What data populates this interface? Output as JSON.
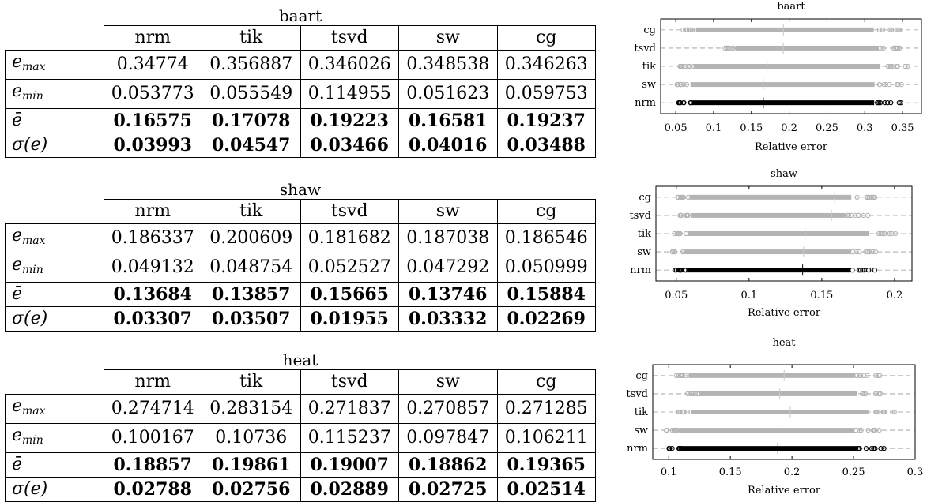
{
  "columns": [
    "nrm",
    "tik",
    "tsvd",
    "sw",
    "cg"
  ],
  "row_labels": {
    "emax": {
      "base": "e",
      "sub": "max"
    },
    "emin": {
      "base": "e",
      "sub": "min"
    },
    "mean": "ē",
    "std": "σ(e)"
  },
  "tables": [
    {
      "title": "baart",
      "emax": [
        "0.34774",
        "0.356887",
        "0.346026",
        "0.348538",
        "0.346263"
      ],
      "emin": [
        "0.053773",
        "0.055549",
        "0.114955",
        "0.051623",
        "0.059753"
      ],
      "mean": [
        "0.16575",
        "0.17078",
        "0.19223",
        "0.16581",
        "0.19237"
      ],
      "std": [
        "0.03993",
        "0.04547",
        "0.03466",
        "0.04016",
        "0.03488"
      ]
    },
    {
      "title": "shaw",
      "emax": [
        "0.186337",
        "0.200609",
        "0.181682",
        "0.187038",
        "0.186546"
      ],
      "emin": [
        "0.049132",
        "0.048754",
        "0.052527",
        "0.047292",
        "0.050999"
      ],
      "mean": [
        "0.13684",
        "0.13857",
        "0.15665",
        "0.13746",
        "0.15884"
      ],
      "std": [
        "0.03307",
        "0.03507",
        "0.01955",
        "0.03332",
        "0.02269"
      ]
    },
    {
      "title": "heat",
      "emax": [
        "0.274714",
        "0.283154",
        "0.271837",
        "0.270857",
        "0.271285"
      ],
      "emin": [
        "0.100167",
        "0.10736",
        "0.115237",
        "0.097847",
        "0.106211"
      ],
      "mean": [
        "0.18857",
        "0.19861",
        "0.19007",
        "0.18862",
        "0.19365"
      ],
      "std": [
        "0.02788",
        "0.02756",
        "0.02889",
        "0.02725",
        "0.02514"
      ]
    }
  ],
  "chart_data": [
    {
      "type": "scatter",
      "title": "baart",
      "xlabel": "Relative error",
      "categories": [
        "nrm",
        "sw",
        "tik",
        "tsvd",
        "cg"
      ],
      "xlim": [
        0.03,
        0.375
      ],
      "xticks": [
        0.05,
        0.1,
        0.15,
        0.2,
        0.25,
        0.3,
        0.35
      ],
      "xtick_labels": [
        "0.05",
        "0.1",
        "0.15",
        "0.2",
        "0.25",
        "0.3",
        "0.35"
      ],
      "series": [
        {
          "name": "nrm",
          "min": 0.053773,
          "max": 0.34774,
          "mean": 0.16575
        },
        {
          "name": "sw",
          "min": 0.051623,
          "max": 0.348538,
          "mean": 0.16581
        },
        {
          "name": "tik",
          "min": 0.055549,
          "max": 0.356887,
          "mean": 0.17078
        },
        {
          "name": "tsvd",
          "min": 0.114955,
          "max": 0.346026,
          "mean": 0.19223
        },
        {
          "name": "cg",
          "min": 0.059753,
          "max": 0.346263,
          "mean": 0.19237
        }
      ],
      "highlight_color": "#000000",
      "other_color": "#b4b4b4"
    },
    {
      "type": "scatter",
      "title": "shaw",
      "xlabel": "Relative error",
      "categories": [
        "nrm",
        "sw",
        "tik",
        "tsvd",
        "cg"
      ],
      "xlim": [
        0.036,
        0.212
      ],
      "xticks": [
        0.05,
        0.1,
        0.15,
        0.2
      ],
      "xtick_labels": [
        "0.05",
        "0.1",
        "0.15",
        "0.2"
      ],
      "series": [
        {
          "name": "nrm",
          "min": 0.049132,
          "max": 0.186337,
          "mean": 0.13684
        },
        {
          "name": "sw",
          "min": 0.047292,
          "max": 0.187038,
          "mean": 0.13746
        },
        {
          "name": "tik",
          "min": 0.048754,
          "max": 0.200609,
          "mean": 0.13857
        },
        {
          "name": "tsvd",
          "min": 0.052527,
          "max": 0.181682,
          "mean": 0.15665
        },
        {
          "name": "cg",
          "min": 0.050999,
          "max": 0.186546,
          "mean": 0.15884
        }
      ],
      "highlight_color": "#000000",
      "other_color": "#b4b4b4"
    },
    {
      "type": "scatter",
      "title": "heat",
      "xlabel": "Relative error",
      "categories": [
        "nrm",
        "sw",
        "tik",
        "tsvd",
        "cg"
      ],
      "xlim": [
        0.087,
        0.3
      ],
      "xticks": [
        0.1,
        0.15,
        0.2,
        0.25,
        0.3
      ],
      "xtick_labels": [
        "0.1",
        "0.15",
        "0.2",
        "0.25",
        "0.3"
      ],
      "series": [
        {
          "name": "nrm",
          "min": 0.100167,
          "max": 0.274714,
          "mean": 0.18857
        },
        {
          "name": "sw",
          "min": 0.097847,
          "max": 0.270857,
          "mean": 0.18862
        },
        {
          "name": "tik",
          "min": 0.10736,
          "max": 0.283154,
          "mean": 0.19861
        },
        {
          "name": "tsvd",
          "min": 0.115237,
          "max": 0.271837,
          "mean": 0.19007
        },
        {
          "name": "cg",
          "min": 0.106211,
          "max": 0.271285,
          "mean": 0.19365
        }
      ],
      "highlight_color": "#000000",
      "other_color": "#b4b4b4"
    }
  ]
}
